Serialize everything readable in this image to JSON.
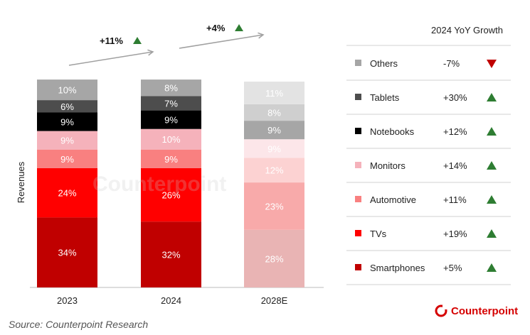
{
  "chart_data": {
    "type": "bar",
    "stacked": true,
    "percent_stacked": true,
    "ylabel": "Revenues",
    "categories": [
      "2023",
      "2024",
      "2028E"
    ],
    "series": [
      {
        "name": "Smartphones",
        "values": [
          34,
          32,
          28
        ],
        "labels": [
          "34%",
          "32%",
          "28%"
        ],
        "colors": [
          "#c00000",
          "#c00000",
          "#e9b4b4"
        ]
      },
      {
        "name": "TVs",
        "values": [
          24,
          26,
          23
        ],
        "labels": [
          "24%",
          "26%",
          "23%"
        ],
        "colors": [
          "#ff0000",
          "#ff0000",
          "#f8aaaa"
        ]
      },
      {
        "name": "Automotive",
        "values": [
          9,
          9,
          12
        ],
        "labels": [
          "9%",
          "9%",
          "12%"
        ],
        "colors": [
          "#f98080",
          "#f98080",
          "#fcd2d2"
        ]
      },
      {
        "name": "Monitors",
        "values": [
          9,
          10,
          9
        ],
        "labels": [
          "9%",
          "10%",
          "9%"
        ],
        "colors": [
          "#f5b2bb",
          "#f5b2bb",
          "#fce6e9"
        ]
      },
      {
        "name": "Notebooks",
        "values": [
          9,
          9,
          9
        ],
        "labels": [
          "9%",
          "9%",
          "9%"
        ],
        "colors": [
          "#000000",
          "#000000",
          "#a6a6a6"
        ]
      },
      {
        "name": "Tablets",
        "values": [
          6,
          7,
          8
        ],
        "labels": [
          "6%",
          "7%",
          "8%"
        ],
        "colors": [
          "#4d4d4d",
          "#4d4d4d",
          "#cfcfcf"
        ]
      },
      {
        "name": "Others",
        "values": [
          10,
          8,
          11
        ],
        "labels": [
          "10%",
          "8%",
          "11%"
        ],
        "colors": [
          "#a6a6a6",
          "#a6a6a6",
          "#e3e3e3"
        ]
      }
    ],
    "growth_annotations": [
      {
        "text": "+11%",
        "from": "2023",
        "to": "2024"
      },
      {
        "text": "+4%",
        "from": "2024",
        "to": "2028E"
      }
    ],
    "legend": {
      "header": "2024 YoY Growth",
      "placement": "right",
      "items": [
        {
          "name": "Others",
          "growth": "-7%",
          "direction": "down",
          "color": "#a6a6a6"
        },
        {
          "name": "Tablets",
          "growth": "+30%",
          "direction": "up",
          "color": "#4d4d4d"
        },
        {
          "name": "Notebooks",
          "growth": "+12%",
          "direction": "up",
          "color": "#000000"
        },
        {
          "name": "Monitors",
          "growth": "+14%",
          "direction": "up",
          "color": "#f5b2bb"
        },
        {
          "name": "Automotive",
          "growth": "+11%",
          "direction": "up",
          "color": "#f98080"
        },
        {
          "name": "TVs",
          "growth": "+19%",
          "direction": "up",
          "color": "#ff0000"
        },
        {
          "name": "Smartphones",
          "growth": "+5%",
          "direction": "up",
          "color": "#c00000"
        }
      ]
    },
    "colors": {
      "up": "#2e7d32",
      "down": "#c00000",
      "brand": "#d50000"
    }
  },
  "source": "Source: Counterpoint Research",
  "watermark": "Counterpoint",
  "brand": {
    "name": "Counterpoint",
    "icon": "counterpoint-logo-icon"
  }
}
